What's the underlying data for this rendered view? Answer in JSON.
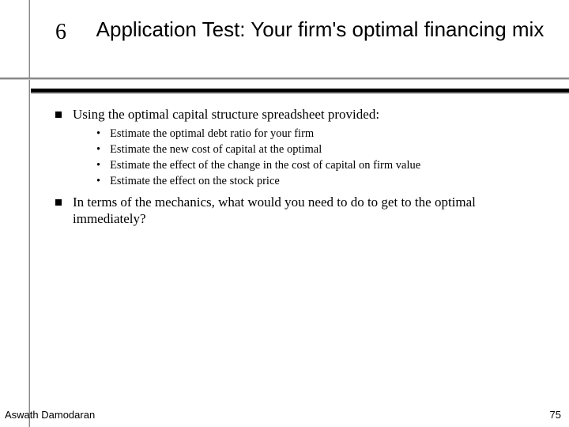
{
  "colors": {
    "background": "#ffffff",
    "text": "#000000",
    "rule_dark": "#888888",
    "rule_light": "#cccccc",
    "thick_rule": "#000000"
  },
  "title": {
    "icon": "6",
    "text": "Application Test: Your firm's optimal financing mix"
  },
  "bullets": {
    "b1": {
      "text": "Using the optimal capital structure spreadsheet provided:",
      "sub": {
        "s1": "Estimate the optimal debt ratio for your firm",
        "s2": "Estimate the new cost of capital at the optimal",
        "s3": "Estimate the effect of the change in the cost of capital on firm value",
        "s4": "Estimate the effect on the stock price"
      }
    },
    "b2": {
      "text": "In terms of the mechanics, what would you need to do to get to the optimal immediately?"
    }
  },
  "footer": {
    "author": "Aswath Damodaran",
    "page": "75"
  }
}
